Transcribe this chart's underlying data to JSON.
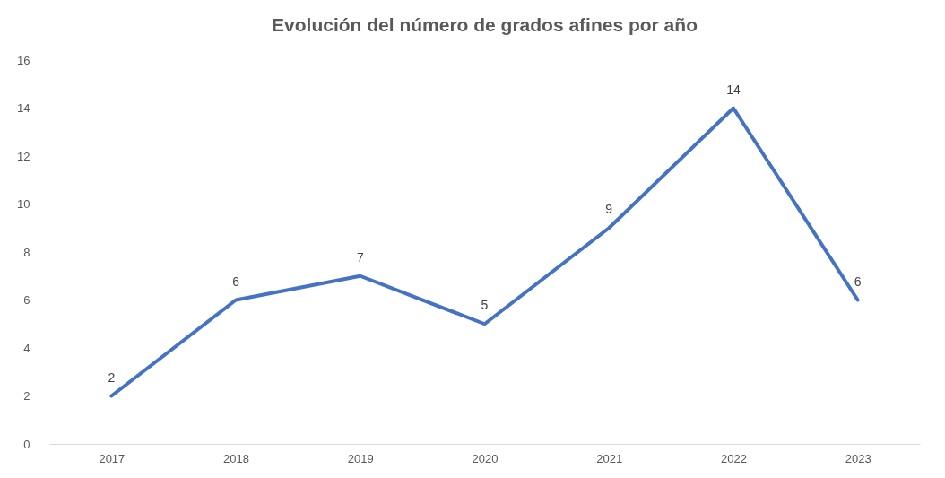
{
  "chart_data": {
    "type": "line",
    "title": "Evolución del número de grados afines  por año",
    "categories": [
      "2017",
      "2018",
      "2019",
      "2020",
      "2021",
      "2022",
      "2023"
    ],
    "series": [
      {
        "color": "#4472c4",
        "values": [
          2,
          6,
          7,
          5,
          9,
          14,
          6
        ]
      }
    ],
    "ylim": [
      0,
      16
    ],
    "yticks": [
      0,
      2,
      4,
      6,
      8,
      10,
      12,
      14,
      16
    ],
    "grid": false,
    "data_labels": true,
    "legend": false,
    "marker": "none",
    "line_style": "solid"
  }
}
